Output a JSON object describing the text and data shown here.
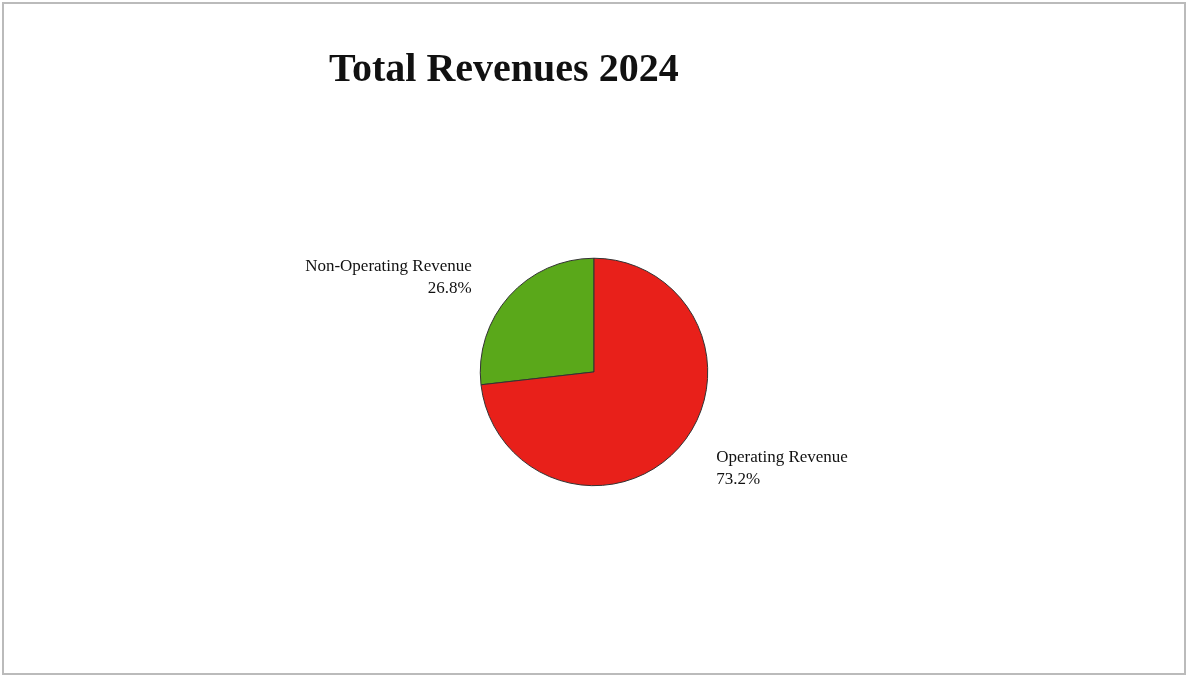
{
  "chart_data": {
    "type": "pie",
    "title": "Total Revenues 2024",
    "categories": [
      "Non-Operating Revenue",
      "Operating Revenue"
    ],
    "values": [
      26.8,
      73.2
    ],
    "value_labels": [
      "26.8%",
      "73.2%"
    ],
    "colors": [
      "#5aa81a",
      "#e8201a"
    ],
    "legend": false
  }
}
